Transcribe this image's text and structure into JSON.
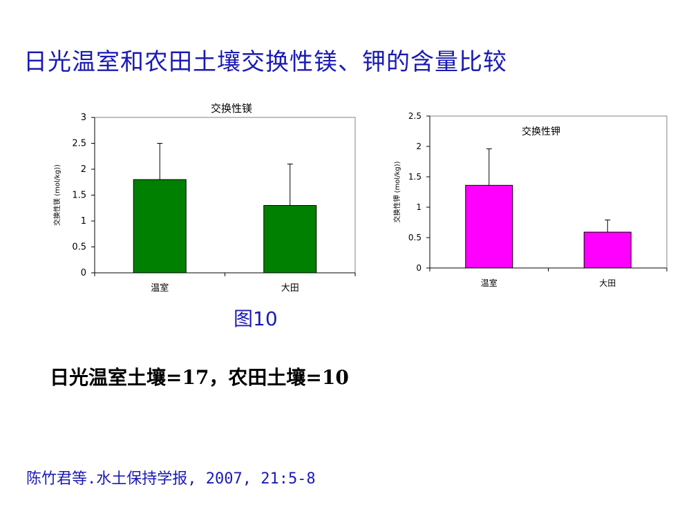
{
  "slide": {
    "title": "日光温室和农田土壤交换性镁、钾的含量比较",
    "figure_label": "图10",
    "ratio_note": "日光温室土壤=17，农田土壤=10",
    "citation": "陈竹君等.水土保持学报, 2007, 21:5-8"
  },
  "chart_data": [
    {
      "type": "bar",
      "title": "交换性镁",
      "ylabel": "交换性镁 (mol/kg))",
      "categories": [
        "温室",
        "大田"
      ],
      "values": [
        1.8,
        1.3
      ],
      "error": [
        0.7,
        0.8
      ],
      "ylim": [
        0,
        3
      ],
      "yticks": [
        "0",
        "0.5",
        "1",
        "1.5",
        "2",
        "2.5",
        "3"
      ],
      "ytick_values": [
        0,
        0.5,
        1,
        1.5,
        2,
        2.5,
        3
      ],
      "bar_color": "#008000",
      "grid": false
    },
    {
      "type": "bar",
      "title": "交换性钾",
      "ylabel": "交换性钾 (mol/kg))",
      "categories": [
        "温室",
        "大田"
      ],
      "values": [
        1.36,
        0.59
      ],
      "error": [
        0.6,
        0.2
      ],
      "ylim": [
        0,
        2.5
      ],
      "yticks": [
        "0",
        "0.5",
        "1",
        "1.5",
        "2",
        "2.5"
      ],
      "ytick_values": [
        0,
        0.5,
        1,
        1.5,
        2,
        2.5
      ],
      "bar_color": "#ff00ff",
      "grid": false
    }
  ]
}
